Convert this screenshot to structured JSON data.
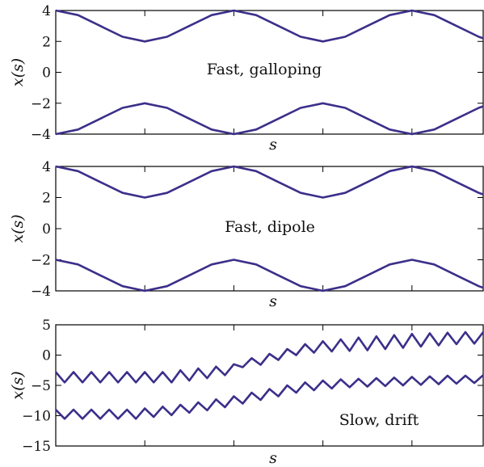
{
  "chart_data": [
    {
      "type": "line",
      "annotation": "Fast, galloping",
      "xlabel": "s",
      "ylabel": "x(s)",
      "xlim": [
        0,
        4.8
      ],
      "ylim": [
        -4,
        4
      ],
      "yticks": [
        4,
        2,
        0,
        -2,
        -4
      ],
      "ytick_labels": [
        "4",
        "2",
        "0",
        "−2",
        "−4"
      ],
      "xticks": [
        1,
        2,
        3,
        4
      ],
      "grid": false,
      "series": [
        {
          "x": [
            0,
            0.25,
            0.5,
            0.75,
            1.0,
            1.25,
            1.5,
            1.75,
            2.0,
            2.25,
            2.5,
            2.75,
            3.0,
            3.25,
            3.5,
            3.75,
            4.0,
            4.25,
            4.5,
            4.75,
            4.8
          ],
          "y": [
            4.0,
            3.7,
            3.0,
            2.3,
            2.0,
            2.3,
            3.0,
            3.7,
            4.0,
            3.7,
            3.0,
            2.3,
            2.0,
            2.3,
            3.0,
            3.7,
            4.0,
            3.7,
            3.0,
            2.3,
            2.2
          ]
        },
        {
          "x": [
            0,
            0.25,
            0.5,
            0.75,
            1.0,
            1.25,
            1.5,
            1.75,
            2.0,
            2.25,
            2.5,
            2.75,
            3.0,
            3.25,
            3.5,
            3.75,
            4.0,
            4.25,
            4.5,
            4.75,
            4.8
          ],
          "y": [
            -4.0,
            -3.7,
            -3.0,
            -2.3,
            -2.0,
            -2.3,
            -3.0,
            -3.7,
            -4.0,
            -3.7,
            -3.0,
            -2.3,
            -2.0,
            -2.3,
            -3.0,
            -3.7,
            -4.0,
            -3.7,
            -3.0,
            -2.3,
            -2.2
          ]
        }
      ]
    },
    {
      "type": "line",
      "annotation": "Fast, dipole",
      "xlabel": "s",
      "ylabel": "x(s)",
      "xlim": [
        0,
        4.8
      ],
      "ylim": [
        -4,
        4
      ],
      "yticks": [
        4,
        2,
        0,
        -2,
        -4
      ],
      "ytick_labels": [
        "4",
        "2",
        "0",
        "−2",
        "−4"
      ],
      "xticks": [
        1,
        2,
        3,
        4
      ],
      "grid": false,
      "series": [
        {
          "x": [
            0,
            0.25,
            0.5,
            0.75,
            1.0,
            1.25,
            1.5,
            1.75,
            2.0,
            2.25,
            2.5,
            2.75,
            3.0,
            3.25,
            3.5,
            3.75,
            4.0,
            4.25,
            4.5,
            4.75,
            4.8
          ],
          "y": [
            4.0,
            3.7,
            3.0,
            2.3,
            2.0,
            2.3,
            3.0,
            3.7,
            4.0,
            3.7,
            3.0,
            2.3,
            2.0,
            2.3,
            3.0,
            3.7,
            4.0,
            3.7,
            3.0,
            2.3,
            2.2
          ]
        },
        {
          "x": [
            0,
            0.25,
            0.5,
            0.75,
            1.0,
            1.25,
            1.5,
            1.75,
            2.0,
            2.25,
            2.5,
            2.75,
            3.0,
            3.25,
            3.5,
            3.75,
            4.0,
            4.25,
            4.5,
            4.75,
            4.8
          ],
          "y": [
            -2.0,
            -2.3,
            -3.0,
            -3.7,
            -4.0,
            -3.7,
            -3.0,
            -2.3,
            -2.0,
            -2.3,
            -3.0,
            -3.7,
            -4.0,
            -3.7,
            -3.0,
            -2.3,
            -2.0,
            -2.3,
            -3.0,
            -3.7,
            -3.8
          ]
        }
      ]
    },
    {
      "type": "line",
      "annotation": "Slow, drift",
      "xlabel": "s",
      "ylabel": "x(s)",
      "xlim": [
        0,
        4.8
      ],
      "ylim": [
        -15,
        5
      ],
      "yticks": [
        5,
        0,
        -5,
        -10,
        -15
      ],
      "ytick_labels": [
        "5",
        "0",
        "−5",
        "−10",
        "−15"
      ],
      "xticks": [
        1,
        2,
        3,
        4
      ],
      "grid": false,
      "series": [
        {
          "x": [
            0,
            0.1,
            0.2,
            0.3,
            0.4,
            0.5,
            0.6,
            0.7,
            0.8,
            0.9,
            1.0,
            1.1,
            1.2,
            1.3,
            1.4,
            1.5,
            1.6,
            1.7,
            1.8,
            1.9,
            2.0,
            2.1,
            2.2,
            2.3,
            2.4,
            2.5,
            2.6,
            2.7,
            2.8,
            2.9,
            3.0,
            3.1,
            3.2,
            3.3,
            3.4,
            3.5,
            3.6,
            3.7,
            3.8,
            3.9,
            4.0,
            4.1,
            4.2,
            4.3,
            4.4,
            4.5,
            4.6,
            4.7,
            4.8
          ],
          "y": [
            -2.8,
            -4.5,
            -2.8,
            -4.5,
            -2.8,
            -4.5,
            -2.8,
            -4.5,
            -2.8,
            -4.5,
            -2.8,
            -4.5,
            -2.8,
            -4.5,
            -2.5,
            -4.2,
            -2.2,
            -3.8,
            -1.9,
            -3.3,
            -1.5,
            -2.0,
            -0.5,
            -1.6,
            0.2,
            -0.8,
            1.0,
            0.0,
            1.8,
            0.4,
            2.3,
            0.6,
            2.6,
            0.7,
            2.9,
            0.8,
            3.1,
            1.0,
            3.3,
            1.2,
            3.5,
            1.4,
            3.6,
            1.6,
            3.7,
            1.8,
            3.8,
            1.9,
            3.8
          ]
        },
        {
          "x": [
            0,
            0.1,
            0.2,
            0.3,
            0.4,
            0.5,
            0.6,
            0.7,
            0.8,
            0.9,
            1.0,
            1.1,
            1.2,
            1.3,
            1.4,
            1.5,
            1.6,
            1.7,
            1.8,
            1.9,
            2.0,
            2.1,
            2.2,
            2.3,
            2.4,
            2.5,
            2.6,
            2.7,
            2.8,
            2.9,
            3.0,
            3.1,
            3.2,
            3.3,
            3.4,
            3.5,
            3.6,
            3.7,
            3.8,
            3.9,
            4.0,
            4.1,
            4.2,
            4.3,
            4.4,
            4.5,
            4.6,
            4.7,
            4.8
          ],
          "y": [
            -9.0,
            -10.5,
            -9.0,
            -10.5,
            -9.0,
            -10.5,
            -9.0,
            -10.5,
            -9.0,
            -10.5,
            -8.8,
            -10.2,
            -8.5,
            -9.9,
            -8.2,
            -9.5,
            -7.8,
            -9.1,
            -7.3,
            -8.6,
            -6.8,
            -8.0,
            -6.2,
            -7.4,
            -5.6,
            -6.8,
            -5.0,
            -6.2,
            -4.5,
            -5.8,
            -4.2,
            -5.5,
            -4.0,
            -5.3,
            -3.9,
            -5.2,
            -3.8,
            -5.1,
            -3.7,
            -5.0,
            -3.6,
            -4.9,
            -3.5,
            -4.8,
            -3.4,
            -4.7,
            -3.4,
            -4.6,
            -3.3
          ]
        }
      ]
    }
  ],
  "style": {
    "line_color": "#3b2f8a",
    "axis_color": "#000000"
  }
}
